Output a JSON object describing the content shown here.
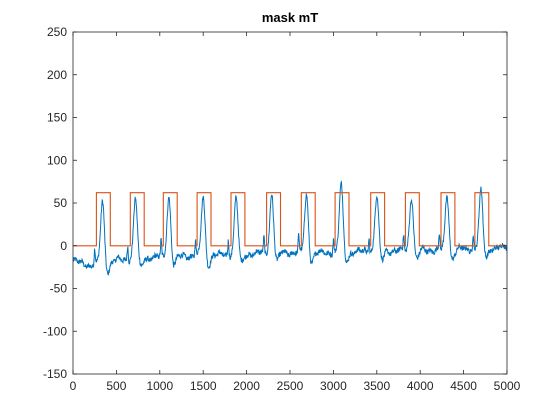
{
  "chart_data": {
    "type": "line",
    "title": "mask mT",
    "xlabel": "",
    "ylabel": "",
    "xlim": [
      0,
      5000
    ],
    "ylim": [
      -150,
      250
    ],
    "xticks": [
      0,
      500,
      1000,
      1500,
      2000,
      2500,
      3000,
      3500,
      4000,
      4500,
      5000
    ],
    "yticks": [
      -150,
      -100,
      -50,
      0,
      50,
      100,
      150,
      200,
      250
    ],
    "grid": false,
    "legend": "none",
    "colors": {
      "signal": "#0072BD",
      "mask": "#D95319",
      "axis": "#262626"
    },
    "series": [
      {
        "role": "signal",
        "baseline": [
          [
            0,
            -18
          ],
          [
            200,
            -23
          ],
          [
            500,
            -17
          ],
          [
            900,
            -14
          ],
          [
            1300,
            -12
          ],
          [
            1700,
            -11
          ],
          [
            2100,
            -9
          ],
          [
            2500,
            -8
          ],
          [
            2900,
            -8
          ],
          [
            3300,
            -7
          ],
          [
            3700,
            -6
          ],
          [
            4100,
            -5
          ],
          [
            4500,
            -4
          ],
          [
            5000,
            -2
          ]
        ],
        "peaks": [
          {
            "x": 340,
            "y": 52
          },
          {
            "x": 720,
            "y": 56
          },
          {
            "x": 1105,
            "y": 58
          },
          {
            "x": 1500,
            "y": 58
          },
          {
            "x": 1880,
            "y": 56
          },
          {
            "x": 2290,
            "y": 62
          },
          {
            "x": 2690,
            "y": 60
          },
          {
            "x": 3090,
            "y": 72
          },
          {
            "x": 3500,
            "y": 60
          },
          {
            "x": 3900,
            "y": 58
          },
          {
            "x": 4310,
            "y": 58
          },
          {
            "x": 4700,
            "y": 64
          }
        ],
        "peak_undershoot": -12
      },
      {
        "role": "mask",
        "low": 0,
        "high": 62,
        "pulses": [
          [
            270,
            430
          ],
          [
            660,
            820
          ],
          [
            1040,
            1200
          ],
          [
            1430,
            1590
          ],
          [
            1820,
            1980
          ],
          [
            2230,
            2390
          ],
          [
            2630,
            2790
          ],
          [
            3020,
            3180
          ],
          [
            3430,
            3590
          ],
          [
            3830,
            3990
          ],
          [
            4240,
            4400
          ],
          [
            4630,
            4790
          ]
        ]
      }
    ]
  }
}
